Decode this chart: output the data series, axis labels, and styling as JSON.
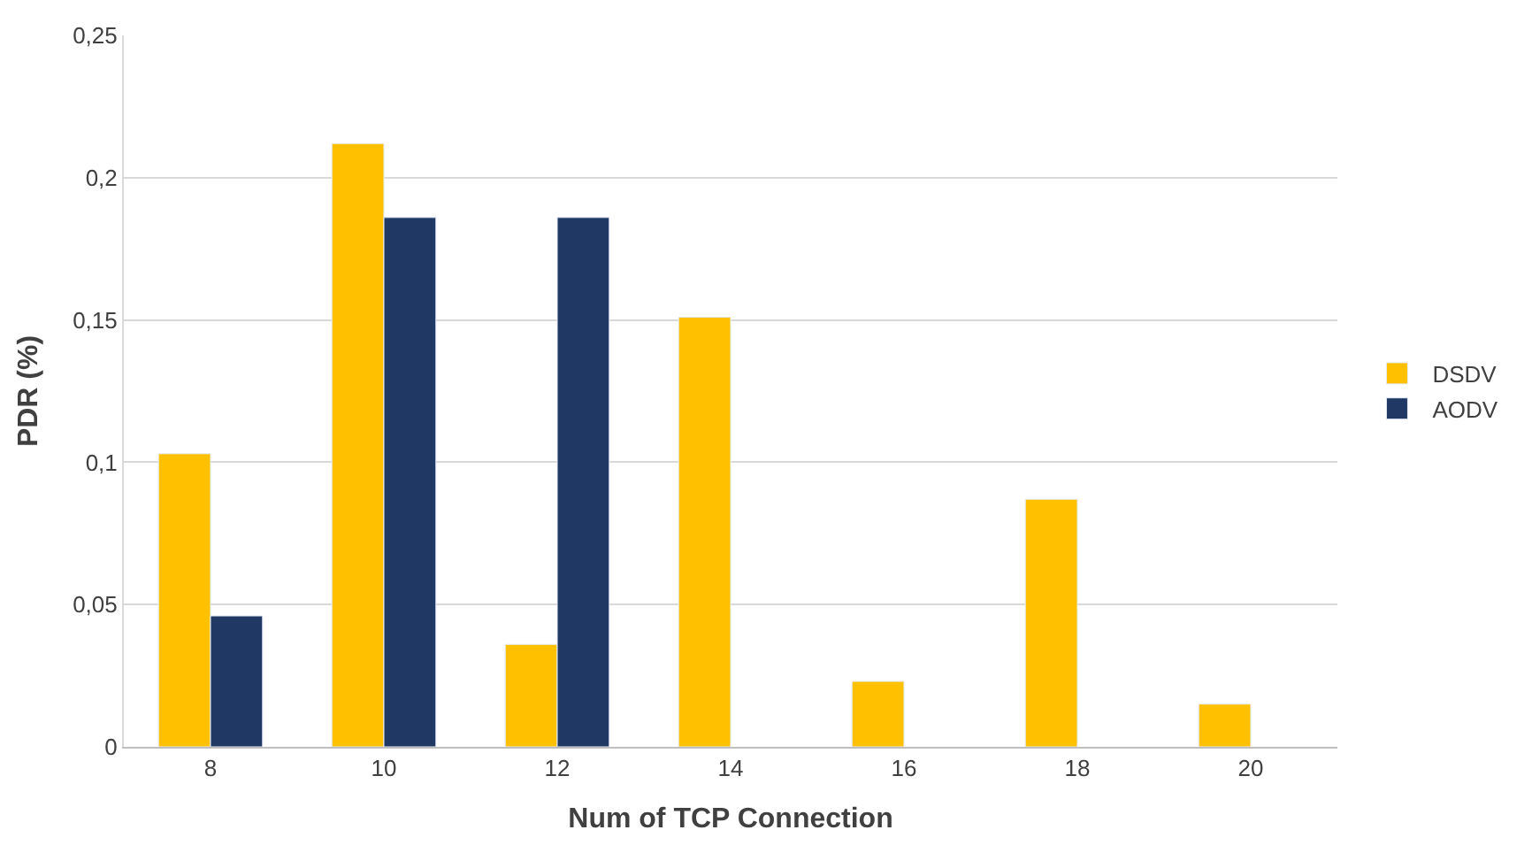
{
  "chart_data": {
    "type": "bar",
    "xlabel": "Num of TCP Connection",
    "ylabel": "PDR (%)",
    "categories": [
      "8",
      "10",
      "12",
      "14",
      "16",
      "18",
      "20"
    ],
    "series": [
      {
        "name": "DSDV",
        "color": "#ffc000",
        "values": [
          0.103,
          0.212,
          0.036,
          0.151,
          0.023,
          0.087,
          0.015
        ]
      },
      {
        "name": "AODV",
        "color": "#203864",
        "values": [
          0.046,
          0.186,
          0.186,
          null,
          null,
          null,
          null
        ]
      }
    ],
    "ylim": [
      0,
      0.25
    ],
    "yticks": [
      0,
      {
        "value": 0.05,
        "label": "0,05"
      },
      {
        "value": 0.1,
        "label": "0,1"
      },
      {
        "value": 0.15,
        "label": "0,15"
      },
      {
        "value": 0.2,
        "label": "0,2"
      },
      {
        "value": 0.25,
        "label": "0,25"
      }
    ],
    "grid": "y",
    "legend": "right"
  }
}
